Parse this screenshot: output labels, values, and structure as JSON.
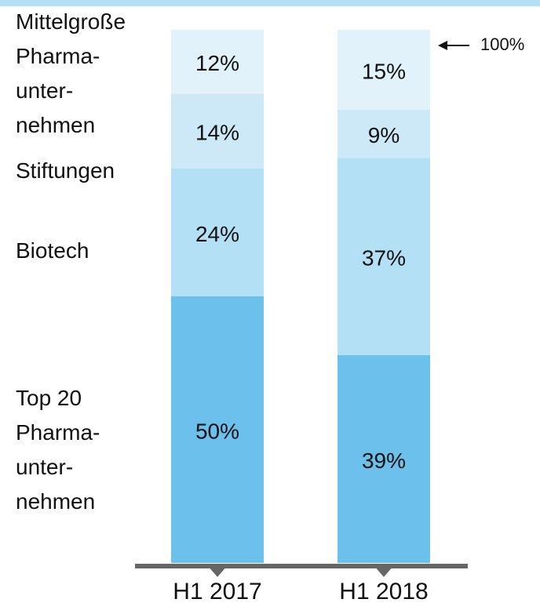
{
  "chart_data": {
    "type": "stacked_bar",
    "categories": [
      "H1 2017",
      "H1 2018"
    ],
    "series": [
      {
        "name": "Top 20\nPharma-\nunter-\nnehmen",
        "color": "#6cc0ec",
        "values": [
          50,
          39
        ],
        "value_labels": [
          "50%",
          "39%"
        ]
      },
      {
        "name": "Biotech",
        "color": "#b3e0f5",
        "values": [
          24,
          37
        ],
        "value_labels": [
          "24%",
          "37%"
        ]
      },
      {
        "name": "Stiftungen",
        "color": "#cde9f7",
        "values": [
          14,
          9
        ],
        "value_labels": [
          "14%",
          "9%"
        ]
      },
      {
        "name": "Mittelgroße\nPharma-\nunter-\nnehmen",
        "color": "#e2f2fb",
        "values": [
          12,
          15
        ],
        "value_labels": [
          "12%",
          "15%"
        ]
      }
    ],
    "ylim": [
      0,
      100
    ],
    "annotation": "100%"
  }
}
